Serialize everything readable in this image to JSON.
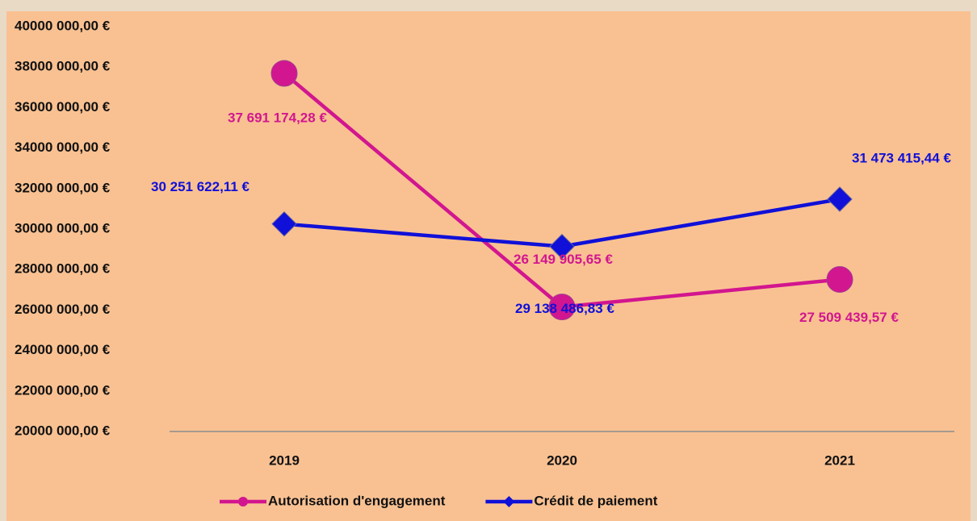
{
  "chart_data": {
    "type": "line",
    "categories": [
      "2019",
      "2020",
      "2021"
    ],
    "series": [
      {
        "name": "Autorisation d'engagement",
        "color": "#d2168f",
        "marker": "circle",
        "values": [
          37691174.28,
          26149905.65,
          27509439.57
        ],
        "value_labels": [
          "37 691 174,28 €",
          "26 149 905,65 €",
          "27 509 439,57 €"
        ]
      },
      {
        "name": "Crédit de paiement",
        "color": "#1010d8",
        "marker": "diamond",
        "values": [
          30251622.11,
          29138486.83,
          31473415.44
        ],
        "value_labels": [
          "30 251 622,11 €",
          "29 138 486,83 €",
          "31 473 415,44 €"
        ]
      }
    ],
    "ylim": [
      20000000,
      40000000
    ],
    "yticks": [
      {
        "value": 20000000,
        "label": "20000 000,00 €"
      },
      {
        "value": 22000000,
        "label": "22000 000,00 €"
      },
      {
        "value": 24000000,
        "label": "24000 000,00 €"
      },
      {
        "value": 26000000,
        "label": "26000 000,00 €"
      },
      {
        "value": 28000000,
        "label": "28000 000,00 €"
      },
      {
        "value": 30000000,
        "label": "30000 000,00 €"
      },
      {
        "value": 32000000,
        "label": "32000 000,00 €"
      },
      {
        "value": 34000000,
        "label": "34000 000,00 €"
      },
      {
        "value": 36000000,
        "label": "36000 000,00 €"
      },
      {
        "value": 38000000,
        "label": "38000 000,00 €"
      },
      {
        "value": 40000000,
        "label": "40000 000,00 €"
      }
    ],
    "grid": false,
    "legend": "bottom"
  }
}
